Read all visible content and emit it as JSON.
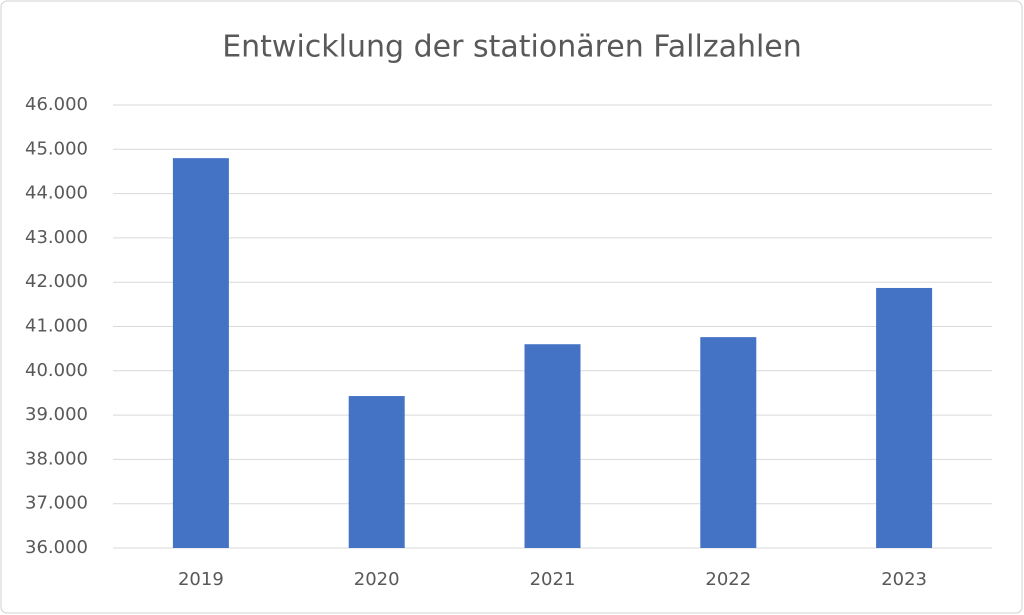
{
  "chart_data": {
    "type": "bar",
    "title": "Entwicklung der stationären Fallzahlen",
    "categories": [
      "2019",
      "2020",
      "2021",
      "2022",
      "2023"
    ],
    "values": [
      44800,
      39430,
      40600,
      40760,
      41870
    ],
    "color": "#4472c4",
    "ylim": [
      36000,
      46000
    ],
    "yticks": [
      {
        "value": 36000,
        "label": "36.000"
      },
      {
        "value": 37000,
        "label": "37.000"
      },
      {
        "value": 38000,
        "label": "38.000"
      },
      {
        "value": 39000,
        "label": "39.000"
      },
      {
        "value": 40000,
        "label": "40.000"
      },
      {
        "value": 41000,
        "label": "41.000"
      },
      {
        "value": 42000,
        "label": "42.000"
      },
      {
        "value": 43000,
        "label": "43.000"
      },
      {
        "value": 44000,
        "label": "44.000"
      },
      {
        "value": 45000,
        "label": "45.000"
      },
      {
        "value": 46000,
        "label": "46.000"
      }
    ],
    "grid": true
  }
}
